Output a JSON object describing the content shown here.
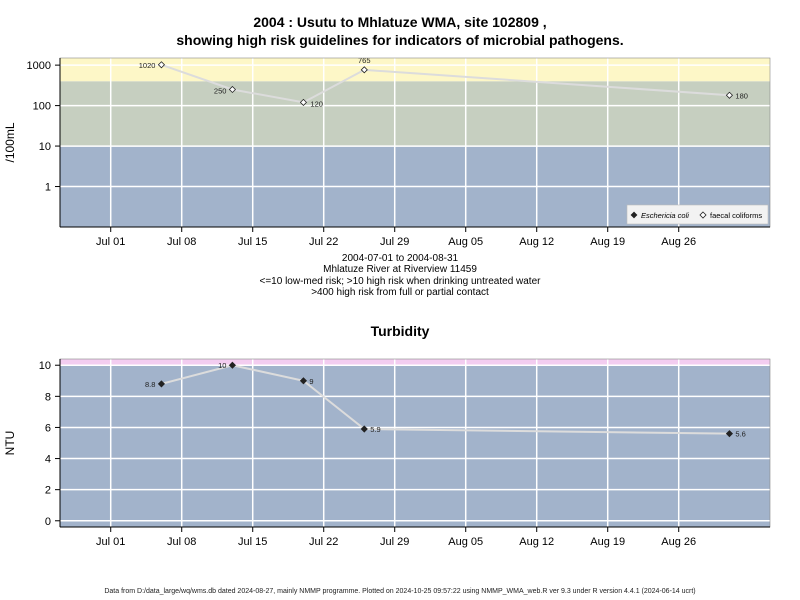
{
  "header": {
    "title_line1": "2004 : Usutu to Mhlatuze WMA, site 102809 ,",
    "title_line2": "showing high risk guidelines for indicators of microbial pathogens."
  },
  "info": {
    "date_range": "2004-07-01 to 2004-08-31",
    "site": "Mhlatuze River at Riverview 11459",
    "risk_note1": "<=10 low-med risk; >10 high risk when drinking untreated water",
    "risk_note2": ">400 high risk from full or partial contact"
  },
  "footer": {
    "text": "Data from D:/data_large/wq/wms.db dated 2024-08-27, mainly NMMP programme. Plotted on 2024-10-25 09:57:22 using NMMP_WMA_web.R ver 9.3 under R version 4.4.1 (2024-06-14 ucrt)"
  },
  "colors": {
    "high_band": "#fdf7c7",
    "mid_band": "#c6cfc0",
    "low_band": "#a2b3cb",
    "turb_top_band": "#f3cdf0",
    "line": "#dcdcdc"
  },
  "chart_data": [
    {
      "type": "line",
      "title": "",
      "xlabel": "",
      "ylabel": "/100mL",
      "yscale": "log",
      "ylim": [
        0.1,
        1500
      ],
      "xlim": [
        "2004-06-26",
        "2004-09-04"
      ],
      "x_ticks": [
        "Jul 01",
        "Jul 08",
        "Jul 15",
        "Jul 22",
        "Jul 29",
        "Aug 05",
        "Aug 12",
        "Aug 19",
        "Aug 26"
      ],
      "y_ticks": [
        "1",
        "10",
        "100",
        "1000"
      ],
      "bands": [
        {
          "from": 0.1,
          "to": 10
        },
        {
          "from": 10,
          "to": 400
        },
        {
          "from": 400,
          "to": 1500
        }
      ],
      "legend": {
        "position": "bottom-right",
        "entries": [
          "Eschericia coli",
          "faecal coliforms"
        ]
      },
      "series": [
        {
          "name": "faecal coliforms",
          "marker": "open-diamond",
          "x": [
            "2004-07-06",
            "2004-07-13",
            "2004-07-20",
            "2004-07-26",
            "2004-08-31"
          ],
          "values": [
            1020,
            250,
            120,
            765,
            180
          ],
          "labels": [
            "1020",
            "250",
            "120",
            "765",
            "180"
          ]
        }
      ]
    },
    {
      "type": "line",
      "title": "Turbidity",
      "xlabel": "",
      "ylabel": "NTU",
      "ylim": [
        -0.4,
        10.4
      ],
      "xlim": [
        "2004-06-26",
        "2004-09-04"
      ],
      "x_ticks": [
        "Jul 01",
        "Jul 08",
        "Jul 15",
        "Jul 22",
        "Jul 29",
        "Aug 05",
        "Aug 12",
        "Aug 19",
        "Aug 26"
      ],
      "y_ticks": [
        "0",
        "2",
        "4",
        "6",
        "8",
        "10"
      ],
      "bands": [
        {
          "from": -0.4,
          "to": 10
        },
        {
          "from": 10,
          "to": 10.4
        }
      ],
      "series": [
        {
          "marker": "filled-diamond",
          "x": [
            "2004-07-06",
            "2004-07-13",
            "2004-07-20",
            "2004-07-26",
            "2004-08-31"
          ],
          "values": [
            8.8,
            10,
            9,
            5.9,
            5.6
          ],
          "labels": [
            "8.8",
            "10",
            "9",
            "5.9",
            "5.6"
          ]
        }
      ]
    }
  ]
}
